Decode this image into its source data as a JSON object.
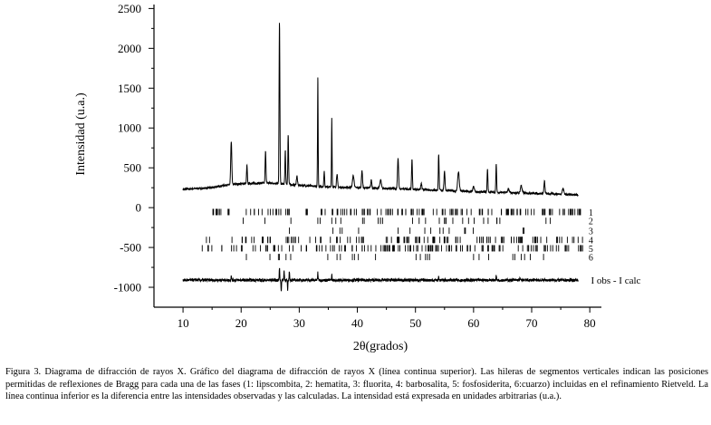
{
  "chart_data": {
    "type": "line",
    "xlabel": "2θ(grados)",
    "ylabel": "Intensidad (u.a.)",
    "xlim": [
      5,
      82
    ],
    "ylim": [
      -1250,
      2550
    ],
    "x_ticks": [
      10,
      20,
      30,
      40,
      50,
      60,
      70,
      80
    ],
    "y_ticks": [
      -1000,
      -500,
      0,
      500,
      1000,
      1500,
      2000,
      2500
    ],
    "grid": false,
    "series": [
      {
        "type": "line",
        "x_range": [
          10,
          78
        ],
        "baseline": [
          [
            10,
            230
          ],
          [
            15,
            250
          ],
          [
            17,
            280
          ],
          [
            20,
            300
          ],
          [
            25,
            310
          ],
          [
            30,
            280
          ],
          [
            35,
            260
          ],
          [
            40,
            250
          ],
          [
            45,
            240
          ],
          [
            50,
            230
          ],
          [
            55,
            215
          ],
          [
            60,
            200
          ],
          [
            65,
            190
          ],
          [
            70,
            180
          ],
          [
            75,
            170
          ],
          [
            78,
            160
          ]
        ],
        "peaks": [
          {
            "x": 18.3,
            "y": 830,
            "w": 0.2
          },
          {
            "x": 21.0,
            "y": 530,
            "w": 0.15
          },
          {
            "x": 24.2,
            "y": 720,
            "w": 0.15
          },
          {
            "x": 26.6,
            "y": 2340,
            "w": 0.15
          },
          {
            "x": 27.6,
            "y": 720,
            "w": 0.15
          },
          {
            "x": 28.1,
            "y": 920,
            "w": 0.15
          },
          {
            "x": 29.6,
            "y": 400,
            "w": 0.2
          },
          {
            "x": 33.2,
            "y": 1660,
            "w": 0.12
          },
          {
            "x": 34.3,
            "y": 450,
            "w": 0.15
          },
          {
            "x": 35.6,
            "y": 1140,
            "w": 0.12
          },
          {
            "x": 36.5,
            "y": 420,
            "w": 0.2
          },
          {
            "x": 39.3,
            "y": 400,
            "w": 0.3
          },
          {
            "x": 40.8,
            "y": 470,
            "w": 0.2
          },
          {
            "x": 42.4,
            "y": 350,
            "w": 0.2
          },
          {
            "x": 44.0,
            "y": 350,
            "w": 0.3
          },
          {
            "x": 47.0,
            "y": 620,
            "w": 0.2
          },
          {
            "x": 49.4,
            "y": 610,
            "w": 0.15
          },
          {
            "x": 51.0,
            "y": 300,
            "w": 0.2
          },
          {
            "x": 54.0,
            "y": 680,
            "w": 0.15
          },
          {
            "x": 55.0,
            "y": 450,
            "w": 0.2
          },
          {
            "x": 57.4,
            "y": 450,
            "w": 0.3
          },
          {
            "x": 60.0,
            "y": 260,
            "w": 0.3
          },
          {
            "x": 62.4,
            "y": 480,
            "w": 0.15
          },
          {
            "x": 63.9,
            "y": 550,
            "w": 0.15
          },
          {
            "x": 66.0,
            "y": 230,
            "w": 0.3
          },
          {
            "x": 68.2,
            "y": 280,
            "w": 0.3
          },
          {
            "x": 72.2,
            "y": 330,
            "w": 0.2
          },
          {
            "x": 75.4,
            "y": 240,
            "w": 0.3
          }
        ]
      },
      {
        "label": "I obs - I calc",
        "type": "difference",
        "x_range": [
          10,
          78
        ],
        "offset": -910,
        "noise": 18,
        "features": [
          {
            "x": 18.3,
            "y": -850
          },
          {
            "x": 26.6,
            "y": -760
          },
          {
            "x": 26.9,
            "y": -1050
          },
          {
            "x": 27.4,
            "y": -790
          },
          {
            "x": 28.0,
            "y": -1040
          },
          {
            "x": 28.3,
            "y": -800
          },
          {
            "x": 33.2,
            "y": -810
          },
          {
            "x": 35.6,
            "y": -840
          },
          {
            "x": 54.0,
            "y": -870
          },
          {
            "x": 63.9,
            "y": -850
          },
          {
            "x": 68.0,
            "y": -890
          }
        ]
      }
    ],
    "bragg_rows": [
      {
        "label": "1",
        "y": -55,
        "range": [
          13.5,
          79
        ],
        "count": 150,
        "extra": []
      },
      {
        "label": "2",
        "y": -165,
        "range": [
          20,
          77
        ],
        "count": 24,
        "extra": [
          24.1,
          33.2,
          35.6,
          40.9,
          49.5,
          54.1,
          62.5,
          64.0
        ]
      },
      {
        "label": "3",
        "y": -290,
        "range": [
          26,
          70
        ],
        "count": 12,
        "extra": [
          28.3,
          47.0,
          55.8,
          58.6,
          68.7
        ]
      },
      {
        "label": "4",
        "y": -405,
        "range": [
          13.5,
          79
        ],
        "count": 120,
        "extra": []
      },
      {
        "label": "5",
        "y": -510,
        "range": [
          13,
          79
        ],
        "count": 140,
        "extra": []
      },
      {
        "label": "6",
        "y": -620,
        "range": [
          20,
          77
        ],
        "count": 20,
        "extra": [
          20.9,
          26.6,
          36.5,
          39.5,
          50.1,
          60.0,
          68.2
        ]
      }
    ],
    "colors": {
      "lines": "#000000",
      "background": "#ffffff"
    }
  },
  "caption": "Figura 3. Diagrama de difracción de rayos X. Gráfico del diagrama de difracción de rayos X (línea continua superior). Las hileras de segmentos verticales indican las posiciones permitidas de reflexiones de Bragg para cada una de las fases (1: lipscombita, 2: hematita, 3: fluorita, 4: barbosalita, 5: fosfosiderita, 6:cuarzo) incluidas en el refinamiento Rietveld. La línea continua inferior es la diferencia entre las intensidades observadas y las calculadas. La intensidad está expresada en unidades arbitrarias (u.a.)."
}
